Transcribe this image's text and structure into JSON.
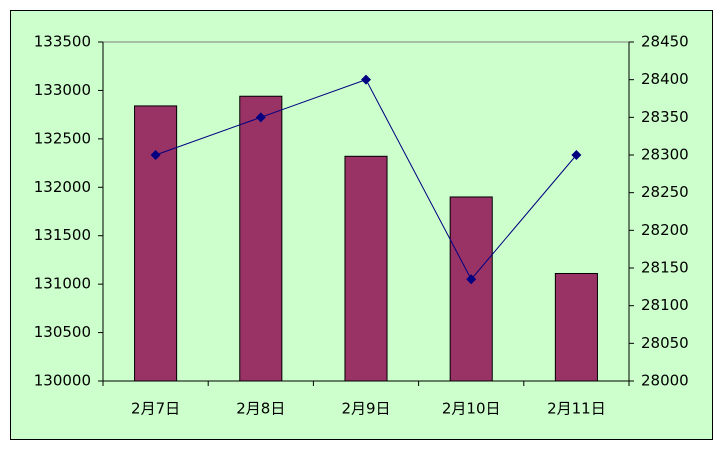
{
  "chart_data": {
    "type": "bar",
    "categories": [
      "2月7日",
      "2月8日",
      "2月9日",
      "2月10日",
      "2月11日"
    ],
    "series": [
      {
        "color": "#993366",
        "values": [
          132840,
          132940,
          132320,
          131900,
          131110
        ]
      },
      {
        "type": "line",
        "axis": "y2",
        "color": "#000080",
        "values": [
          28300,
          28350,
          28400,
          28135,
          28300
        ]
      }
    ],
    "ylim": [
      130000,
      133500
    ],
    "yticks": [
      130000,
      130500,
      131000,
      131500,
      132000,
      132500,
      133000,
      133500
    ],
    "y2lim": [
      28000,
      28450
    ],
    "y2ticks": [
      28000,
      28050,
      28100,
      28150,
      28200,
      28250,
      28300,
      28350,
      28400,
      28450
    ],
    "background": "#ccffcc"
  }
}
